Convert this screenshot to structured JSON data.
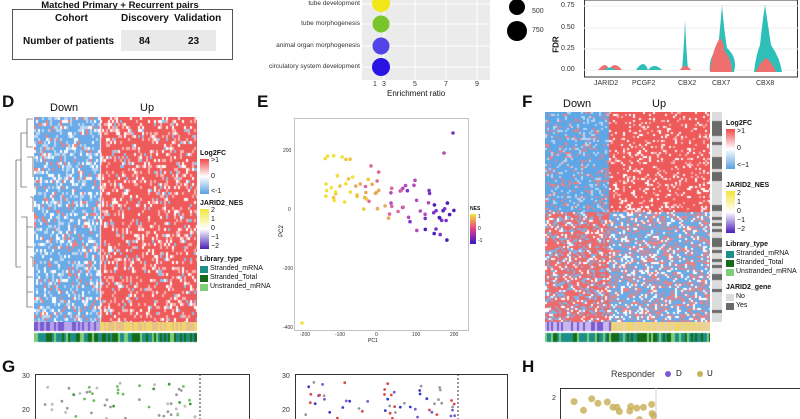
{
  "panelC_table": {
    "title": "Matched Primary + Recurrent pairs",
    "header": {
      "cohort": "Cohort",
      "discovery": "Discovery",
      "validation": "Validation"
    },
    "row": {
      "label": "Number of patients",
      "discovery": "84",
      "validation": "23"
    }
  },
  "go_enrichment": {
    "terms": [
      "tube development",
      "tube morphogenesis",
      "animal organ morphogenesis",
      "circulatory system development"
    ],
    "xlabel": "Enrichment ratio",
    "xticks": [
      "3",
      "5",
      "7",
      "9"
    ],
    "extra_tick": "1",
    "size_legend": [
      "500",
      "750"
    ],
    "colors": {
      "term1": "#f2e618",
      "term2": "#7bc52c",
      "term3": "#5145e6",
      "term4": "#2a14e4"
    }
  },
  "violin": {
    "ylabel": "FDR",
    "yticks": [
      "0.75",
      "0.50",
      "0.25",
      "0.00"
    ],
    "genes": [
      "JARID2",
      "PCGF2",
      "CBX2",
      "CBX7",
      "CBX8"
    ],
    "colors": {
      "teal": "#2dbfb8",
      "red": "#ef6f6f"
    }
  },
  "panel_letters": {
    "D": "D",
    "E": "E",
    "F": "F",
    "G": "G",
    "H": "H"
  },
  "heatmapD": {
    "down_label": "Down",
    "up_label": "Up",
    "legend": {
      "log2fc_title": "Log2FC",
      "log2fc_ticks": [
        ">1",
        "0",
        "<-1"
      ],
      "nes_title": "JARID2_NES",
      "nes_ticks": [
        "2",
        "1",
        "0",
        "−1",
        "−2"
      ],
      "lib_title": "Library_type",
      "lib_items": [
        "Stranded_mRNA",
        "Stranded_Total",
        "Unstranded_mRNA"
      ]
    }
  },
  "pcaE": {
    "xlabel": "PC1",
    "ylabel": "PC2",
    "xticks": [
      "-200",
      "-100",
      "0",
      "100",
      "200"
    ],
    "yticks": [
      "200",
      "0",
      "-200",
      "-400"
    ],
    "legend_title": "NES",
    "legend_ticks": [
      "1",
      "0",
      "-1"
    ]
  },
  "heatmapF": {
    "down_label": "Down",
    "up_label": "Up",
    "legend": {
      "log2fc_title": "Log2FC",
      "log2fc_ticks": [
        ">1",
        "0",
        "<−1"
      ],
      "nes_title": "JARID2_NES",
      "nes_ticks": [
        "2",
        "1",
        "0",
        "−1",
        "−2"
      ],
      "lib_title": "Library_type",
      "lib_items": [
        "Stranded_mRNA",
        "Stranded_Total",
        "Unstranded_mRNA"
      ],
      "gene_title": "JARID2_gene",
      "gene_items": [
        "No",
        "Yes"
      ]
    }
  },
  "panelG": {
    "yticks_left": [
      "30",
      "20"
    ],
    "yticks_right": [
      "30",
      "20"
    ]
  },
  "panelH": {
    "legend_title": "Responder",
    "legend_items": [
      "D",
      "U"
    ],
    "ytick": "2"
  }
}
